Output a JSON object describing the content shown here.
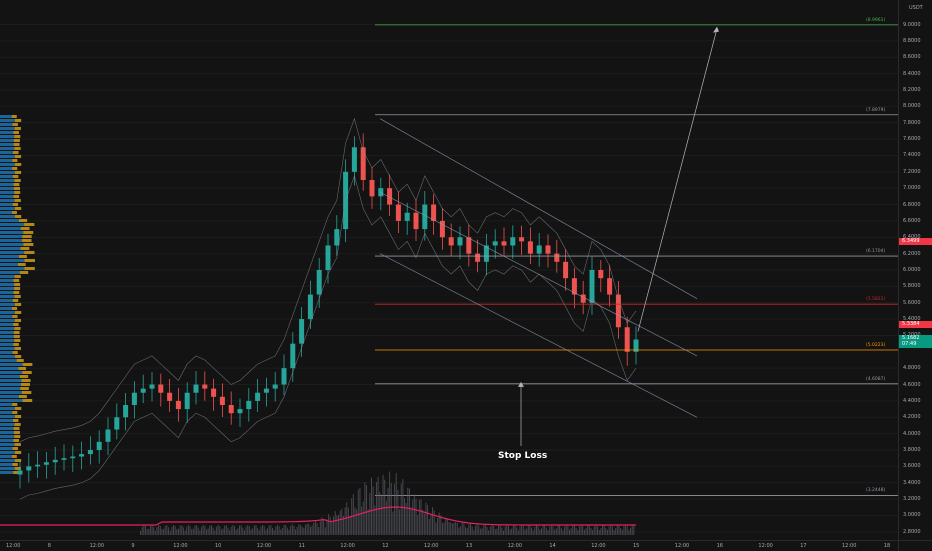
{
  "chart_data": {
    "type": "candlestick",
    "price_unit": "USDT",
    "y_ticks": [
      "9.0000",
      "8.8000",
      "8.6000",
      "8.4000",
      "8.2000",
      "8.0000",
      "7.8000",
      "7.6000",
      "7.4000",
      "7.2000",
      "7.0000",
      "6.8000",
      "6.6000",
      "6.4000",
      "6.2000",
      "6.0000",
      "5.8000",
      "5.6000",
      "5.4000",
      "5.2000",
      "4.8000",
      "4.6000",
      "4.4000",
      "4.2000",
      "4.0000",
      "3.8000",
      "3.6000",
      "3.4000",
      "3.2000",
      "3.0000",
      "2.8000"
    ],
    "y_range": [
      2.7,
      9.3
    ],
    "x_ticks": [
      "12:00",
      "8",
      "12:00",
      "9",
      "12:00",
      "10",
      "12:00",
      "11",
      "12:00",
      "12",
      "12:00",
      "13",
      "12:00",
      "14",
      "12:00",
      "15",
      "12:00",
      "16",
      "12:00",
      "17",
      "12:00",
      "18"
    ],
    "price_badges": [
      {
        "value": "6.3499",
        "color": "#f23645"
      },
      {
        "value": "5.3384",
        "color": "#f23645"
      },
      {
        "value": "5.1682",
        "color": "#089981"
      },
      {
        "value": "07:49",
        "color": "#089981"
      }
    ],
    "levels": [
      {
        "label": "(8.9961)",
        "value": 8.9961,
        "color": "#4caf50",
        "style": "solid"
      },
      {
        "label": "(7.8979)",
        "value": 7.8979,
        "color": "#9598a1",
        "style": "solid"
      },
      {
        "label": "(6.1704)",
        "value": 6.1704,
        "color": "#9598a1",
        "style": "solid"
      },
      {
        "label": "(5.5822)",
        "value": 5.5822,
        "color": "#c62828",
        "style": "solid"
      },
      {
        "label": "(5.0223)",
        "value": 5.0223,
        "color": "#ff9800",
        "style": "solid"
      },
      {
        "label": "(4.6087)",
        "value": 4.6087,
        "color": "#9598a1",
        "style": "solid"
      },
      {
        "label": "(3.2448)",
        "value": 3.2448,
        "color": "#9598a1",
        "style": "solid"
      }
    ],
    "series_close": [
      3.55,
      3.6,
      3.62,
      3.65,
      3.68,
      3.7,
      3.72,
      3.75,
      3.8,
      3.9,
      4.05,
      4.2,
      4.35,
      4.5,
      4.55,
      4.6,
      4.5,
      4.4,
      4.3,
      4.5,
      4.6,
      4.55,
      4.45,
      4.35,
      4.25,
      4.3,
      4.4,
      4.5,
      4.55,
      4.6,
      4.8,
      5.1,
      5.4,
      5.7,
      6.0,
      6.3,
      6.5,
      7.2,
      7.5,
      7.1,
      6.9,
      7.0,
      6.8,
      6.6,
      6.7,
      6.5,
      6.8,
      6.6,
      6.4,
      6.3,
      6.4,
      6.2,
      6.1,
      6.3,
      6.35,
      6.3,
      6.4,
      6.35,
      6.2,
      6.3,
      6.2,
      6.1,
      5.9,
      5.7,
      5.6,
      6.0,
      5.9,
      5.7,
      5.3,
      5.0,
      5.15
    ],
    "annotation": "Stop Loss"
  }
}
